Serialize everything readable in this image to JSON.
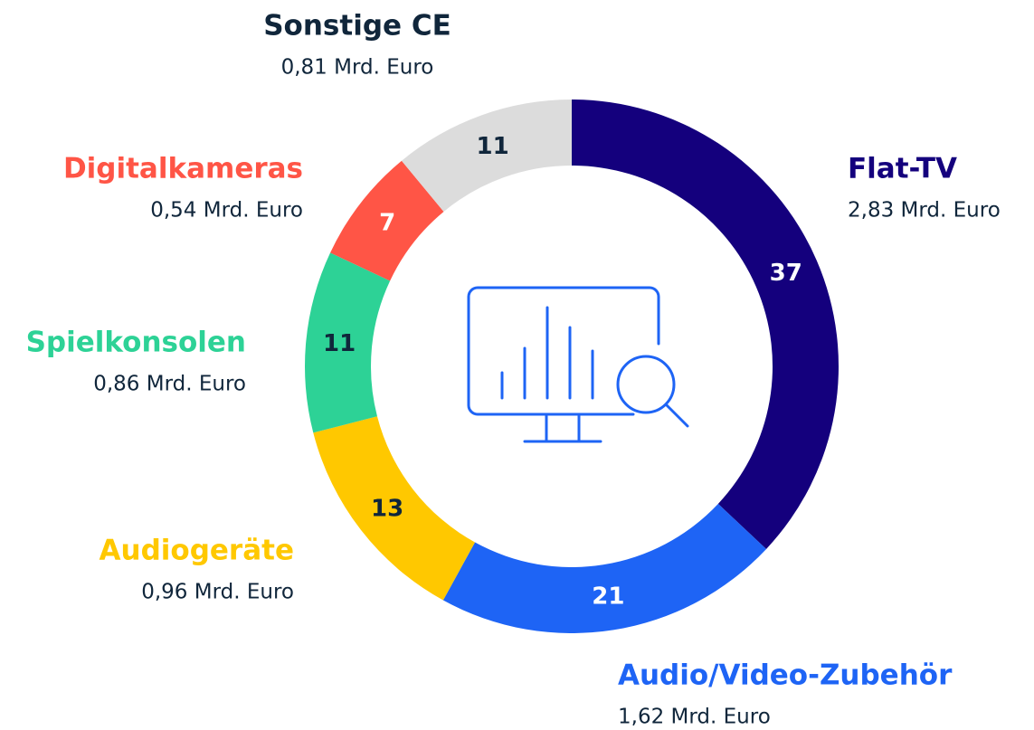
{
  "chart_data": {
    "type": "donut",
    "categories": [
      "Flat-TV",
      "Audio/Video-Zubehör",
      "Audiogeräte",
      "Spielkonsolen",
      "Digitalkameras",
      "Sonstige CE"
    ],
    "values": [
      37,
      21,
      13,
      11,
      7,
      11
    ],
    "amount_labels": [
      "2,83 Mrd. Euro",
      "1,62 Mrd. Euro",
      "0,96 Mrd. Euro",
      "0,86 Mrd. Euro",
      "0,54 Mrd. Euro",
      "0,81 Mrd. Euro"
    ],
    "colors": [
      "#14007d",
      "#1e64f5",
      "#ffc800",
      "#2dd296",
      "#ff5546",
      "#dcdcdc"
    ],
    "label_colors": [
      "#14007d",
      "#1e64f5",
      "#ffc800",
      "#2dd296",
      "#ff5546",
      "#10263b"
    ]
  }
}
